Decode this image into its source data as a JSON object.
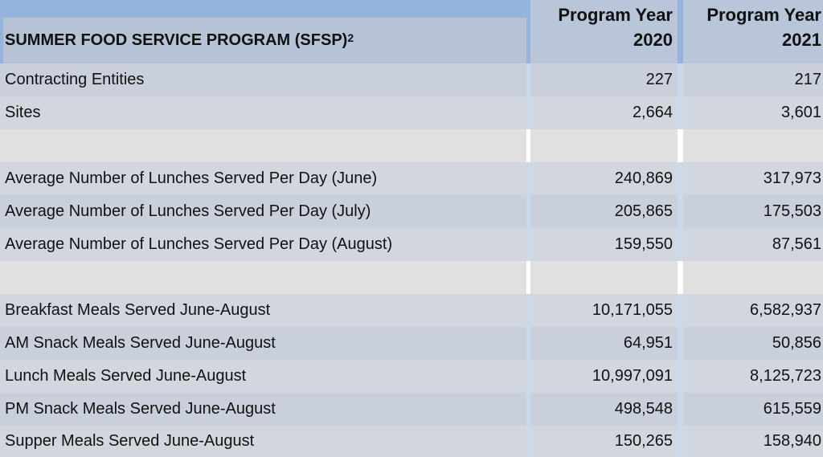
{
  "header": {
    "title": "SUMMER FOOD SERVICE PROGRAM (SFSP)",
    "title_superscript": "2",
    "columns": [
      {
        "line1": "Program Year",
        "line2": "2020"
      },
      {
        "line1": "Program Year",
        "line2": "2021"
      }
    ]
  },
  "rows": [
    {
      "label": "Contracting Entities",
      "v2020": "227",
      "v2021": "217"
    },
    {
      "label": "Sites",
      "v2020": "2,664",
      "v2021": "3,601"
    },
    {
      "label": "",
      "v2020": "",
      "v2021": ""
    },
    {
      "label": "Average Number of Lunches Served Per Day (June)",
      "v2020": "240,869",
      "v2021": "317,973"
    },
    {
      "label": "Average Number of Lunches Served Per Day (July)",
      "v2020": "205,865",
      "v2021": "175,503"
    },
    {
      "label": "Average Number of Lunches Served Per Day (August)",
      "v2020": "159,550",
      "v2021": "87,561"
    },
    {
      "label": "",
      "v2020": "",
      "v2021": ""
    },
    {
      "label": "Breakfast Meals Served June-August",
      "v2020": "10,171,055",
      "v2021": "6,582,937"
    },
    {
      "label": "AM Snack Meals Served June-August",
      "v2020": "64,951",
      "v2021": "50,856"
    },
    {
      "label": "Lunch Meals Served June-August",
      "v2020": "10,997,091",
      "v2021": "8,125,723"
    },
    {
      "label": "PM Snack Meals Served June-August",
      "v2020": "498,548",
      "v2021": "615,559"
    },
    {
      "label": "Supper Meals Served June-August",
      "v2020": "150,265",
      "v2021": "158,940"
    }
  ]
}
